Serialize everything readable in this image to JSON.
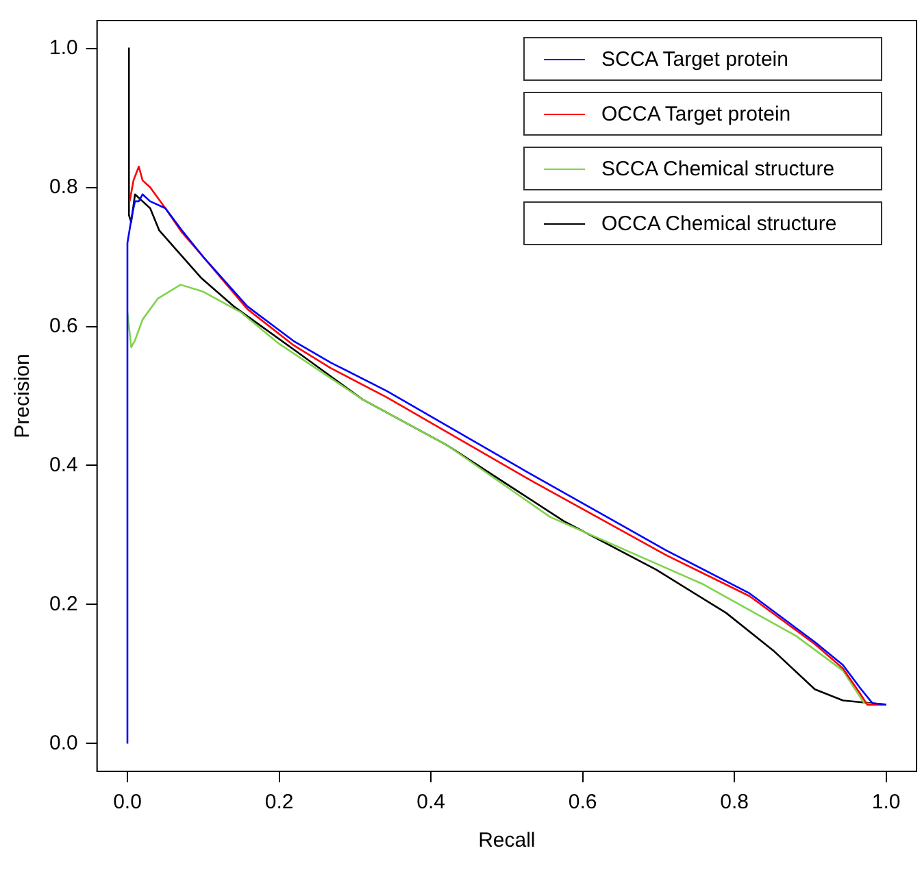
{
  "chart_data": {
    "type": "line",
    "xlabel": "Recall",
    "ylabel": "Precision",
    "xlim": [
      -0.04,
      1.04
    ],
    "ylim": [
      -0.04,
      1.04
    ],
    "xticks": [
      {
        "value": 0,
        "label": "0.0"
      },
      {
        "value": 0.2,
        "label": "0.2"
      },
      {
        "value": 0.4,
        "label": "0.4"
      },
      {
        "value": 0.6,
        "label": "0.6"
      },
      {
        "value": 0.8,
        "label": "0.8"
      },
      {
        "value": 1,
        "label": "1.0"
      }
    ],
    "yticks": [
      {
        "value": 0,
        "label": "0.0"
      },
      {
        "value": 0.2,
        "label": "0.2"
      },
      {
        "value": 0.4,
        "label": "0.4"
      },
      {
        "value": 0.6,
        "label": "0.6"
      },
      {
        "value": 0.8,
        "label": "0.8"
      },
      {
        "value": 1,
        "label": "1.0"
      }
    ],
    "grid": false,
    "legend": "top right",
    "marker": "none",
    "line_style": "solid",
    "series": [
      {
        "name": "SCCA Target protein",
        "color": "#0000ff",
        "x": [
          0,
          0,
          0.003,
          0.006,
          0.01,
          0.015,
          0.02,
          0.03,
          0.05,
          0.072,
          0.1,
          0.158,
          0.219,
          0.268,
          0.342,
          0.531,
          0.71,
          0.82,
          0.906,
          0.943,
          0.967,
          0.982,
          1
        ],
        "values": [
          0,
          0.72,
          0.74,
          0.76,
          0.78,
          0.78,
          0.79,
          0.78,
          0.77,
          0.738,
          0.7,
          0.629,
          0.579,
          0.548,
          0.507,
          0.388,
          0.278,
          0.216,
          0.146,
          0.113,
          0.078,
          0.058,
          0.056
        ]
      },
      {
        "name": "OCCA Target protein",
        "color": "#ff0000",
        "x": [
          0.003,
          0.008,
          0.015,
          0.02,
          0.03,
          0.05,
          0.072,
          0.1,
          0.158,
          0.219,
          0.268,
          0.342,
          0.531,
          0.71,
          0.82,
          0.906,
          0.943,
          0.965,
          0.975,
          1
        ],
        "values": [
          0.78,
          0.81,
          0.83,
          0.81,
          0.8,
          0.77,
          0.735,
          0.7,
          0.625,
          0.573,
          0.54,
          0.498,
          0.379,
          0.271,
          0.212,
          0.143,
          0.108,
          0.073,
          0.056,
          0.056
        ]
      },
      {
        "name": "SCCA Chemical structure",
        "color": "#7fd34a",
        "x": [
          0,
          0.005,
          0.01,
          0.02,
          0.04,
          0.07,
          0.1,
          0.15,
          0.2,
          0.31,
          0.42,
          0.557,
          0.759,
          0.881,
          0.943,
          0.971,
          1
        ],
        "values": [
          0.62,
          0.57,
          0.58,
          0.61,
          0.64,
          0.66,
          0.65,
          0.62,
          0.575,
          0.495,
          0.43,
          0.326,
          0.229,
          0.155,
          0.105,
          0.058,
          0.056
        ]
      },
      {
        "name": "OCCA Chemical structure",
        "color": "#000000",
        "x": [
          0.002,
          0.002,
          0.005,
          0.01,
          0.02,
          0.03,
          0.042,
          0.097,
          0.14,
          0.219,
          0.31,
          0.42,
          0.575,
          0.697,
          0.789,
          0.851,
          0.906,
          0.943,
          1
        ],
        "values": [
          1,
          0.76,
          0.75,
          0.79,
          0.78,
          0.77,
          0.738,
          0.67,
          0.629,
          0.567,
          0.495,
          0.43,
          0.32,
          0.25,
          0.188,
          0.134,
          0.078,
          0.062,
          0.056
        ]
      }
    ]
  }
}
